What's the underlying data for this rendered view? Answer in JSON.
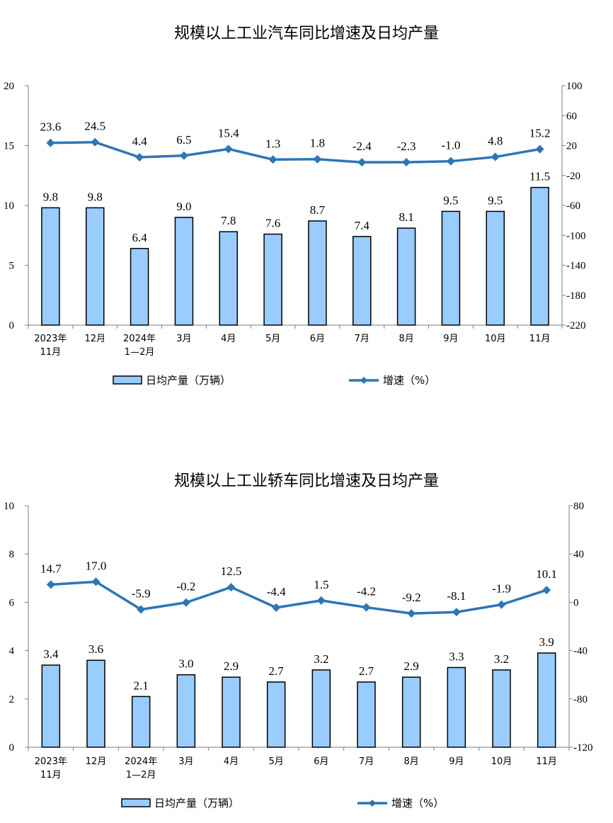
{
  "chart_data": [
    {
      "type": "bar",
      "title": "规模以上工业汽车同比增速及日均产量",
      "categories": [
        "2023年\n11月",
        "12月",
        "2024年\n1—2月",
        "3月",
        "4月",
        "5月",
        "6月",
        "7月",
        "8月",
        "9月",
        "10月",
        "11月"
      ],
      "series": [
        {
          "name": "日均产量（万辆）",
          "type": "bar",
          "axis": "left",
          "values": [
            9.8,
            9.8,
            6.4,
            9.0,
            7.8,
            7.6,
            8.7,
            7.4,
            8.1,
            9.5,
            9.5,
            11.5
          ]
        },
        {
          "name": "增速（%）",
          "type": "line",
          "axis": "right",
          "values": [
            23.6,
            24.5,
            4.4,
            6.5,
            15.4,
            1.3,
            1.8,
            -2.4,
            -2.3,
            -1.0,
            4.8,
            15.2
          ]
        }
      ],
      "left_axis": {
        "min": 0,
        "max": 20,
        "ticks": [
          "0",
          "5",
          "10",
          "15",
          "20"
        ]
      },
      "right_axis": {
        "min": -220,
        "max": 100,
        "ticks": [
          "-220",
          "-180",
          "-140",
          "-100",
          "-60",
          "-20",
          "20",
          "60",
          "100"
        ]
      },
      "legend_position": "bottom",
      "grid": false,
      "colors": {
        "bar_fill": "#99ccff",
        "bar_edge": "#000000",
        "line": "#2e75b6"
      }
    },
    {
      "type": "bar",
      "title": "规模以上工业轿车同比增速及日均产量",
      "categories": [
        "2023年\n11月",
        "12月",
        "2024年\n1—2月",
        "3月",
        "4月",
        "5月",
        "6月",
        "7月",
        "8月",
        "9月",
        "10月",
        "11月"
      ],
      "series": [
        {
          "name": "日均产量（万辆）",
          "type": "bar",
          "axis": "left",
          "values": [
            3.4,
            3.6,
            2.1,
            3.0,
            2.9,
            2.7,
            3.2,
            2.7,
            2.9,
            3.3,
            3.2,
            3.9
          ]
        },
        {
          "name": "增速（%）",
          "type": "line",
          "axis": "right",
          "values": [
            14.7,
            17.0,
            -5.9,
            -0.2,
            12.5,
            -4.4,
            1.5,
            -4.2,
            -9.2,
            -8.1,
            -1.9,
            10.1
          ]
        }
      ],
      "left_axis": {
        "min": 0,
        "max": 10,
        "ticks": [
          "0",
          "2",
          "4",
          "6",
          "8",
          "10"
        ]
      },
      "right_axis": {
        "min": -120,
        "max": 80,
        "ticks": [
          "-120",
          "-80",
          "-40",
          "0",
          "40",
          "80"
        ]
      },
      "legend_position": "bottom",
      "grid": false,
      "colors": {
        "bar_fill": "#99ccff",
        "bar_edge": "#000000",
        "line": "#2e75b6"
      }
    }
  ]
}
